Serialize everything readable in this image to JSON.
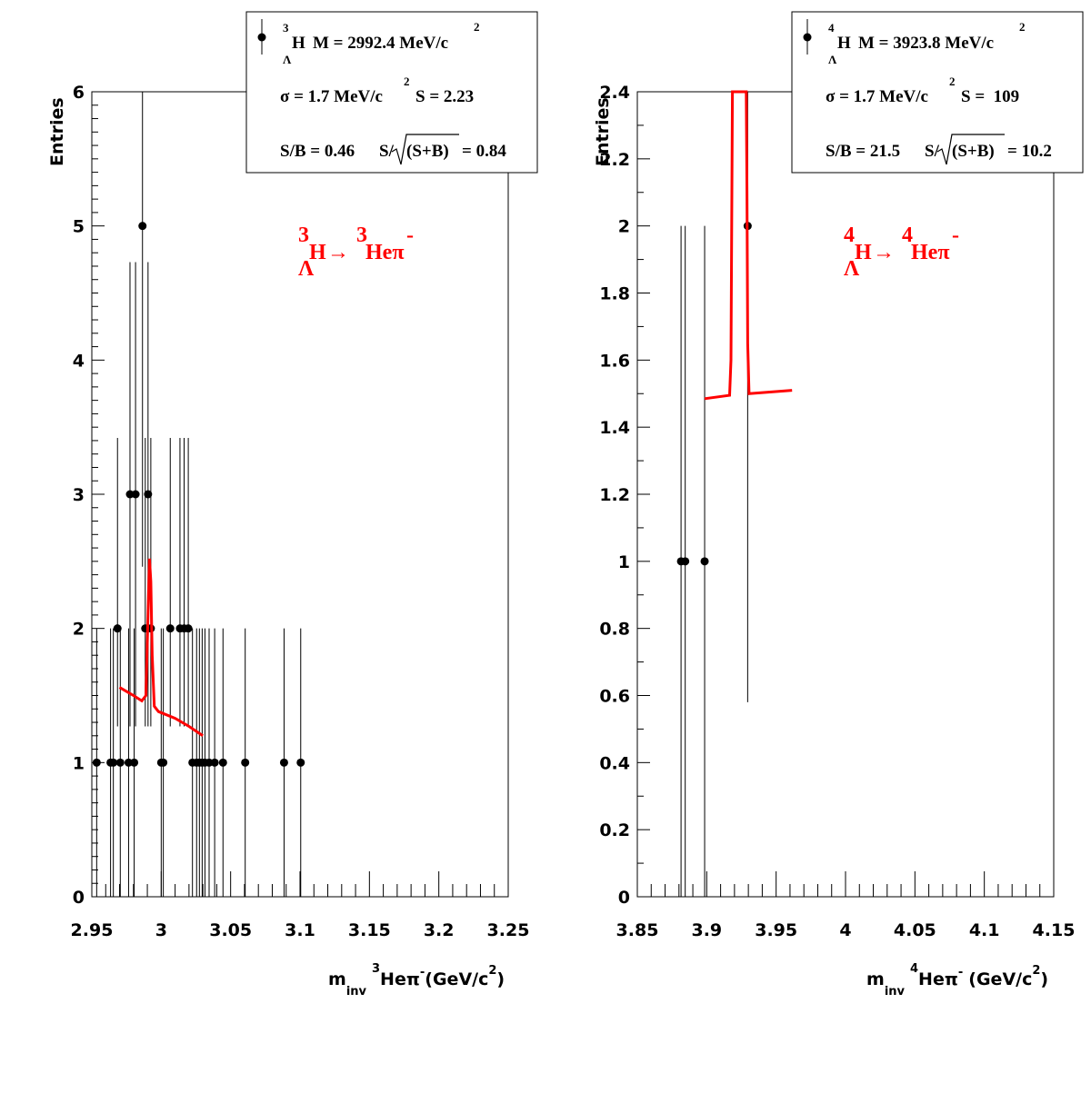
{
  "chart_data": [
    {
      "type": "scatter",
      "ylabel": "Entries",
      "xlabel": {
        "main": "m",
        "sub": "inv",
        "iso": "3",
        "particle": "Heπ",
        "charge": "-",
        "units_pre": "(GeV/c",
        "units_pow": "2",
        "units_post": ")"
      },
      "xlim": [
        2.95,
        3.25
      ],
      "ylim": [
        0,
        6
      ],
      "xticks": [
        "2.95",
        "3",
        "3.05",
        "3.1",
        "3.15",
        "3.2",
        "3.25"
      ],
      "yticks": [
        "0",
        "1",
        "2",
        "3",
        "4",
        "5",
        "6"
      ],
      "reaction": {
        "mass_num": "3",
        "hyper": "H",
        "lambda": "Λ",
        "arrow": "→",
        "daughter_mass": "3",
        "daughter": "Heπ",
        "charge": "-"
      },
      "stats": {
        "line1": {
          "mass_num": "3",
          "nucleus": "H",
          "lambda": "Λ",
          "text": "M = 2992.4 MeV/c",
          "pow": "2"
        },
        "line2": {
          "sigma": "σ = 1.7 MeV/c",
          "pow": "2",
          "s_text": "S = 2.23"
        },
        "line3": {
          "sb": "S/B = 0.46",
          "ssb_pre": "S/",
          "ssb_arg": "(S+B)",
          "ssb_val": "= 0.84"
        }
      },
      "points": [
        {
          "x": 2.9535,
          "y": 1
        },
        {
          "x": 2.9635,
          "y": 1
        },
        {
          "x": 2.9655,
          "y": 1
        },
        {
          "x": 2.9685,
          "y": 2
        },
        {
          "x": 2.9705,
          "y": 1
        },
        {
          "x": 2.9765,
          "y": 1
        },
        {
          "x": 2.9775,
          "y": 3
        },
        {
          "x": 2.9805,
          "y": 1
        },
        {
          "x": 2.9815,
          "y": 3
        },
        {
          "x": 2.9865,
          "y": 5
        },
        {
          "x": 2.9885,
          "y": 2
        },
        {
          "x": 2.9905,
          "y": 3
        },
        {
          "x": 2.9925,
          "y": 2
        },
        {
          "x": 3.0,
          "y": 1
        },
        {
          "x": 3.0015,
          "y": 1
        },
        {
          "x": 3.0065,
          "y": 2
        },
        {
          "x": 3.0135,
          "y": 2
        },
        {
          "x": 3.0165,
          "y": 2
        },
        {
          "x": 3.0195,
          "y": 2
        },
        {
          "x": 3.0225,
          "y": 1
        },
        {
          "x": 3.0255,
          "y": 1
        },
        {
          "x": 3.0275,
          "y": 1
        },
        {
          "x": 3.0295,
          "y": 1
        },
        {
          "x": 3.0315,
          "y": 1
        },
        {
          "x": 3.0345,
          "y": 1
        },
        {
          "x": 3.0385,
          "y": 1
        },
        {
          "x": 3.0445,
          "y": 1
        },
        {
          "x": 3.0605,
          "y": 1
        },
        {
          "x": 3.0885,
          "y": 1
        },
        {
          "x": 3.1005,
          "y": 1
        }
      ],
      "fit_x": [
        2.97,
        2.98,
        2.986,
        2.989,
        2.9905,
        2.9915,
        2.9925,
        2.9935,
        2.995,
        2.998,
        3.01,
        3.02,
        3.03
      ],
      "fit_y": [
        1.56,
        1.5,
        1.46,
        1.5,
        2.1,
        2.52,
        2.35,
        1.8,
        1.42,
        1.38,
        1.33,
        1.27,
        1.2
      ]
    },
    {
      "type": "scatter",
      "ylabel": "Entries",
      "xlabel": {
        "main": "m",
        "sub": "inv",
        "iso": "4",
        "particle": "Heπ",
        "charge": "-",
        "units_pre": "(GeV/c",
        "units_pow": "2",
        "units_post": ")"
      },
      "xlim": [
        3.85,
        4.15
      ],
      "ylim": [
        0,
        2.4
      ],
      "xticks": [
        "3.85",
        "3.9",
        "3.95",
        "4",
        "4.05",
        "4.1",
        "4.15"
      ],
      "yticks": [
        "0",
        "0.2",
        "0.4",
        "0.6",
        "0.8",
        "1",
        "1.2",
        "1.4",
        "1.6",
        "1.8",
        "2",
        "2.2",
        "2.4"
      ],
      "reaction": {
        "mass_num": "4",
        "hyper": "H",
        "lambda": "Λ",
        "arrow": "→",
        "daughter_mass": "4",
        "daughter": "Heπ",
        "charge": "-"
      },
      "stats": {
        "line1": {
          "mass_num": "4",
          "nucleus": "H",
          "lambda": "Λ",
          "text": "M = 3923.8 MeV/c",
          "pow": "2"
        },
        "line2": {
          "sigma": "σ = 1.7 MeV/c",
          "pow": "2",
          "s_text": "S =  109"
        },
        "line3": {
          "sb": "S/B = 21.5",
          "ssb_pre": "S/",
          "ssb_arg": "(S+B)",
          "ssb_val": "= 10.2"
        }
      },
      "points": [
        {
          "x": 3.8815,
          "y": 1
        },
        {
          "x": 3.8845,
          "y": 1
        },
        {
          "x": 3.8985,
          "y": 1
        },
        {
          "x": 3.9295,
          "y": 2
        }
      ],
      "fit_x": [
        3.8985,
        3.9165,
        3.9175,
        3.918,
        3.9185,
        3.9285,
        3.929,
        3.9295,
        3.9305,
        3.9615
      ],
      "fit_y": [
        1.485,
        1.495,
        1.6,
        2.0,
        2.4,
        2.4,
        2.1,
        1.65,
        1.5,
        1.51
      ]
    }
  ]
}
